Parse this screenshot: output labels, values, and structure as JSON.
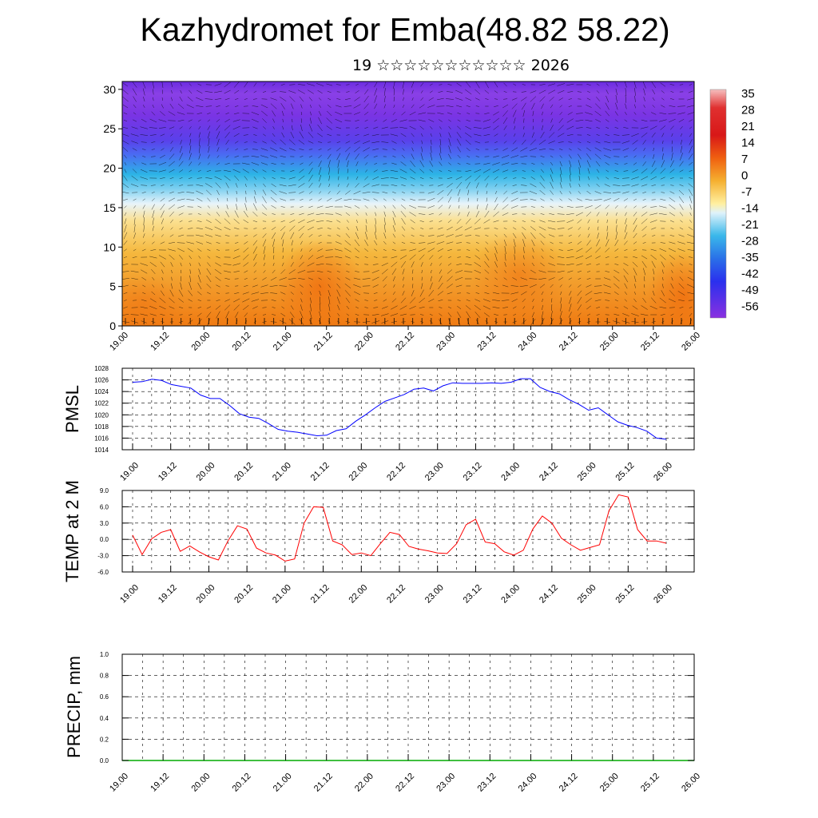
{
  "page": {
    "title": "Kazhydromet for Emba(48.82 58.22)",
    "subtitle": "19 ☆☆☆☆☆☆☆☆☆☆☆ 2026"
  },
  "chart_data": [
    {
      "type": "heatmap",
      "title": "Kazhydromet for Emba(48.82 58.22)",
      "x_tick_labels": [
        "19.00",
        "19.12",
        "20.00",
        "20.12",
        "21.00",
        "21.12",
        "22.00",
        "22.12",
        "23.00",
        "23.12",
        "24.00",
        "24.12",
        "25.00",
        "25.12",
        "26.00"
      ],
      "y_ticks": [
        0,
        5,
        10,
        15,
        20,
        25,
        30
      ],
      "ylim": [
        0,
        31
      ],
      "colorbar_labels": [
        "35",
        "28",
        "21",
        "14",
        "7",
        "0",
        "-7",
        "-14",
        "-21",
        "-28",
        "-35",
        "-42",
        "-49",
        "-56"
      ],
      "colors": {
        "warm_low": "#f07a12",
        "warm_mid": "#f5b43a",
        "yellow": "#fde98a",
        "cyan": "#2cb8e8",
        "blue": "#3a5cf0",
        "violet": "#6a2ce0",
        "vector": "#000000"
      }
    },
    {
      "type": "line",
      "ylabel": "PMSL",
      "ylim": [
        1014,
        1028
      ],
      "y_ticks": [
        "1014",
        "1016",
        "1018",
        "1020",
        "1022",
        "1024",
        "1026",
        "1028"
      ],
      "x_tick_labels": [
        "19.00",
        "19.12",
        "20.00",
        "20.12",
        "21.00",
        "21.12",
        "22.00",
        "22.12",
        "23.00",
        "23.12",
        "24.00",
        "24.12",
        "25.00",
        "25.12",
        "26.00"
      ],
      "series": [
        {
          "color": "#0000ff",
          "values": [
            1025.6,
            1025.7,
            1026.1,
            1025.9,
            1025.2,
            1024.9,
            1024.6,
            1023.4,
            1022.8,
            1022.8,
            1021.6,
            1020.2,
            1019.6,
            1019.4,
            1018.5,
            1017.5,
            1017.2,
            1017.0,
            1016.7,
            1016.4,
            1016.5,
            1017.3,
            1017.6,
            1018.9,
            1020.0,
            1021.2,
            1022.3,
            1022.9,
            1023.5,
            1024.4,
            1024.6,
            1024.1,
            1025.0,
            1025.5,
            1025.4,
            1025.4,
            1025.4,
            1025.5,
            1025.4,
            1025.6,
            1026.2,
            1026.2,
            1024.7,
            1024.0,
            1023.6,
            1022.6,
            1021.8,
            1020.8,
            1021.2,
            1020.0,
            1018.8,
            1018.2,
            1017.8,
            1017.2,
            1016.0,
            1015.8
          ]
        }
      ]
    },
    {
      "type": "line",
      "ylabel": "TEMP at 2 M",
      "ylim": [
        -6,
        9
      ],
      "y_ticks": [
        "-6.0",
        "-3.0",
        "0.0",
        "3.0",
        "6.0",
        "9.0"
      ],
      "x_tick_labels": [
        "19.00",
        "19.12",
        "20.00",
        "20.12",
        "21.00",
        "21.12",
        "22.00",
        "22.12",
        "23.00",
        "23.12",
        "24.00",
        "24.12",
        "25.00",
        "25.12",
        "26.00"
      ],
      "series": [
        {
          "color": "#ff0000",
          "values": [
            0.8,
            -2.8,
            0.1,
            1.3,
            1.8,
            -2.2,
            -1.2,
            -2.3,
            -3.2,
            -3.8,
            -0.3,
            2.5,
            1.9,
            -1.6,
            -2.5,
            -2.9,
            -4.0,
            -3.6,
            3.0,
            6.0,
            5.9,
            -0.3,
            -1.0,
            -2.8,
            -2.5,
            -3.0,
            -0.8,
            1.3,
            0.9,
            -1.3,
            -1.8,
            -2.1,
            -2.5,
            -2.6,
            -0.8,
            2.7,
            3.7,
            -0.5,
            -0.8,
            -2.3,
            -2.9,
            -2.0,
            1.9,
            4.3,
            3.0,
            0.2,
            -1.0,
            -2.0,
            -1.5,
            -1.0,
            5.3,
            8.2,
            7.8,
            1.8,
            -0.3,
            -0.3,
            -0.7
          ]
        }
      ]
    },
    {
      "type": "line",
      "ylabel": "PRECIP, mm",
      "ylim": [
        0,
        1.0
      ],
      "y_ticks": [
        "0.0",
        "0.2",
        "0.4",
        "0.6",
        "0.8",
        "1.0"
      ],
      "x_tick_labels": [
        "19.00",
        "19.12",
        "20.00",
        "20.12",
        "21.00",
        "21.12",
        "22.00",
        "22.12",
        "23.00",
        "23.12",
        "24.00",
        "24.12",
        "25.00",
        "25.12",
        "26.00"
      ],
      "series": [
        {
          "color": "#00aa00",
          "values": [
            0,
            0,
            0,
            0,
            0,
            0,
            0,
            0,
            0,
            0,
            0,
            0,
            0,
            0,
            0
          ]
        }
      ]
    }
  ]
}
